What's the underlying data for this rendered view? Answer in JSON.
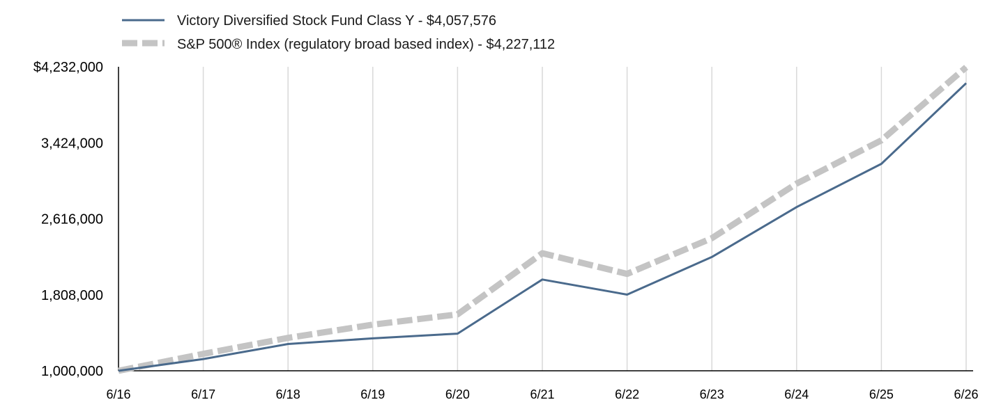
{
  "chart_data": {
    "type": "line",
    "title": "",
    "xlabel": "",
    "ylabel": "",
    "categories": [
      "6/16",
      "6/17",
      "6/18",
      "6/19",
      "6/20",
      "6/21",
      "6/22",
      "6/23",
      "6/24",
      "6/25",
      "6/26"
    ],
    "ylim": [
      1000000,
      4232000
    ],
    "y_ticks": [
      "$4,232,000",
      "3,424,000",
      "2,616,000",
      "1,808,000",
      "1,000,000"
    ],
    "grid": "vertical",
    "legend_position": "top-left",
    "series": [
      {
        "name": "Victory Diversified Stock Fund Class Y - $4,057,576",
        "color": "#4a6a8c",
        "style": "solid",
        "values": [
          1000000,
          1125000,
          1285000,
          1345000,
          1395000,
          1970000,
          1810000,
          2210000,
          2740000,
          3200000,
          4057576
        ]
      },
      {
        "name": "S&P 500® Index (regulatory broad based index) - $4,227,112",
        "color": "#c4c4c4",
        "style": "dashed",
        "values": [
          1000000,
          1180000,
          1350000,
          1490000,
          1600000,
          2250000,
          2030000,
          2410000,
          2990000,
          3450000,
          4227112
        ]
      }
    ]
  }
}
